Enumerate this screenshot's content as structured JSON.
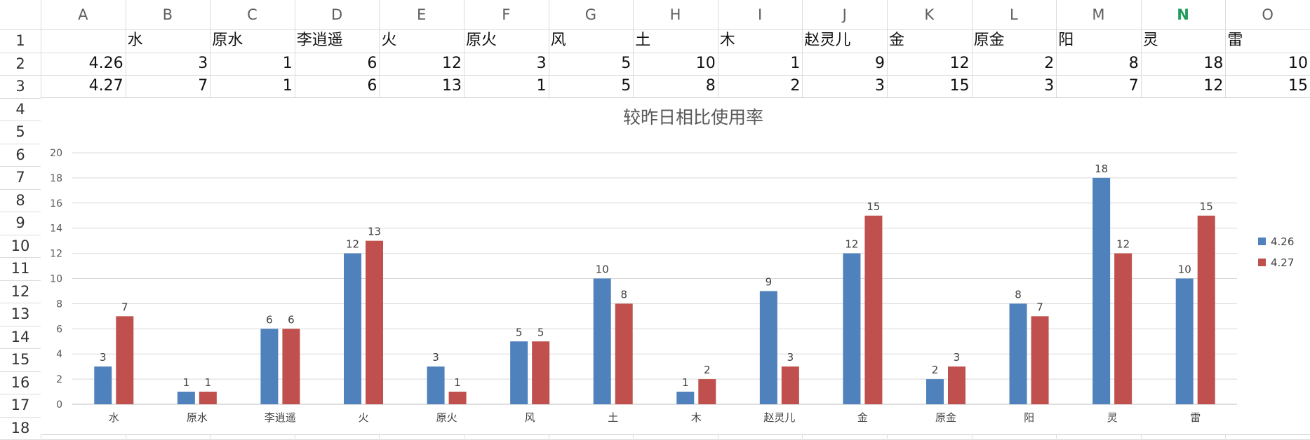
{
  "spreadsheet": {
    "column_headers": [
      "A",
      "B",
      "C",
      "D",
      "E",
      "F",
      "G",
      "H",
      "I",
      "J",
      "K",
      "L",
      "M",
      "N",
      "O"
    ],
    "active_column": "N",
    "row_headers": [
      "1",
      "2",
      "3",
      "4",
      "5",
      "6",
      "7",
      "8",
      "9",
      "10",
      "11",
      "12",
      "13",
      "14",
      "15",
      "16",
      "17",
      "18"
    ],
    "rows": [
      [
        "",
        "水",
        "原水",
        "李逍遥",
        "火",
        "原火",
        "风",
        "土",
        "木",
        "赵灵儿",
        "金",
        "原金",
        "阳",
        "灵",
        "雷"
      ],
      [
        "4.26",
        "3",
        "1",
        "6",
        "12",
        "3",
        "5",
        "10",
        "1",
        "9",
        "12",
        "2",
        "8",
        "18",
        "10"
      ],
      [
        "4.27",
        "7",
        "1",
        "6",
        "13",
        "1",
        "5",
        "8",
        "2",
        "3",
        "15",
        "3",
        "7",
        "12",
        "15"
      ]
    ]
  },
  "chart_data": {
    "type": "bar",
    "title": "较昨日相比使用率",
    "categories": [
      "水",
      "原水",
      "李逍遥",
      "火",
      "原火",
      "风",
      "土",
      "木",
      "赵灵儿",
      "金",
      "原金",
      "阳",
      "灵",
      "雷"
    ],
    "series": [
      {
        "name": "4.26",
        "values": [
          3,
          1,
          6,
          12,
          3,
          5,
          10,
          1,
          9,
          12,
          2,
          8,
          18,
          10
        ],
        "color": "#4f81bd"
      },
      {
        "name": "4.27",
        "values": [
          7,
          1,
          6,
          13,
          1,
          5,
          8,
          2,
          3,
          15,
          3,
          7,
          12,
          15
        ],
        "color": "#c0504d"
      }
    ],
    "ylim": [
      0,
      20
    ],
    "yticks": [
      0,
      2,
      4,
      6,
      8,
      10,
      12,
      14,
      16,
      18,
      20
    ],
    "grid": true,
    "data_labels": true,
    "legend_placement": "right"
  }
}
